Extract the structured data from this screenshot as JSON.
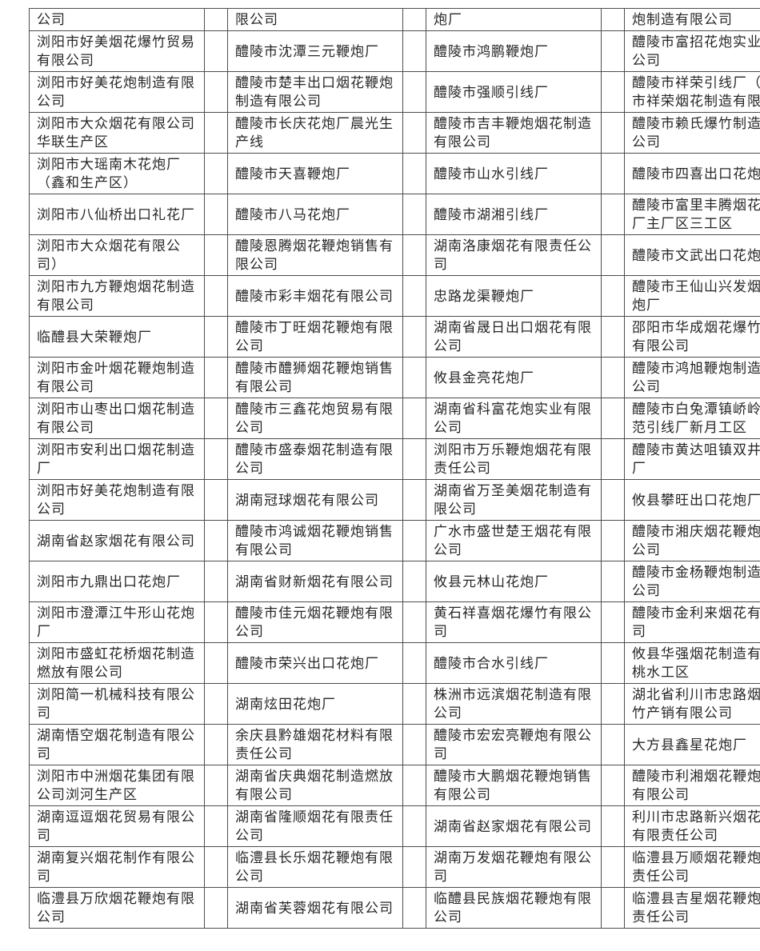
{
  "document": {
    "type": "scanned-table-page",
    "border_color": "#4d4d4d",
    "text_color": "#262626",
    "background_color": "#ffffff"
  },
  "table": {
    "column_count": 4,
    "spacer_columns": 3,
    "rows": [
      [
        "公司",
        "限公司",
        "炮厂",
        "炮制造有限公司"
      ],
      [
        "浏阳市好美烟花爆竹贸易有限公司",
        "醴陵市沈潭三元鞭炮厂",
        "醴陵市鸿鹏鞭炮厂",
        "醴陵市富招花炮实业有限公司"
      ],
      [
        "浏阳市好美花炮制造有限公司",
        "醴陵市楚丰出口烟花鞭炮制造有限公司",
        "醴陵市强顺引线厂",
        "醴陵市祥荣引线厂（醴陵市祥荣烟花制造有限公司"
      ],
      [
        "浏阳市大众烟花有限公司华联生产区",
        "醴陵市长庆花炮厂晨光生产线",
        "醴陵市吉丰鞭炮烟花制造有限公司",
        "醴陵市赖氏爆竹制造有限公司"
      ],
      [
        "浏阳市大瑶南木花炮厂（鑫和生产区）",
        "醴陵市天喜鞭炮厂",
        "醴陵市山水引线厂",
        "醴陵市四喜出口花炮厂"
      ],
      [
        "浏阳市八仙桥出口礼花厂",
        "醴陵市八马花炮厂",
        "醴陵市湖湘引线厂",
        "醴陵市富里丰腾烟花鞭炮厂主厂区三工区"
      ],
      [
        "浏阳市大众烟花有限公司）",
        "醴陵恩腾烟花鞭炮销售有限公司",
        "湖南洛康烟花有限责任公司",
        "醴陵市文武出口花炮厂"
      ],
      [
        "浏阳市九方鞭炮烟花制造有限公司",
        "醴陵市彩丰烟花有限公司",
        "忠路龙渠鞭炮厂",
        "醴陵市王仙山兴发烟花鞭炮厂"
      ],
      [
        "临醴县大荣鞭炮厂",
        "醴陵市丁旺烟花鞭炮有限公司",
        "湖南省晟日出口烟花有限公司",
        "邵阳市华成烟花爆竹批发有限公司"
      ],
      [
        "浏阳市金叶烟花鞭炮制造有限公司",
        "醴陵市醴狮烟花鞭炮销售有限公司",
        "攸县金亮花炮厂",
        "醴陵市鸿旭鞭炮制造有限公司"
      ],
      [
        "浏阳市山枣出口烟花制造有限公司",
        "醴陵市三鑫花炮贸易有限公司",
        "湖南省科富花炮实业有限公司",
        "醴陵市白兔潭镇峤岭村规范引线厂新月工区"
      ],
      [
        "浏阳市安利出口烟花制造厂",
        "醴陵市盛泰烟花制造有限公司",
        "浏阳市万乐鞭炮烟花有限责任公司",
        "醴陵市黄达咀镇双井花炮厂"
      ],
      [
        "浏阳市好美花炮制造有限公司",
        "湖南冠球烟花有限公司",
        "湖南省万圣美烟花制造有限公司",
        "攸县攀旺出口花炮厂"
      ],
      [
        "湖南省赵家烟花有限公司",
        "醴陵市鸿诚烟花鞭炮销售有限公司",
        "广水市盛世楚王烟花有限公司",
        "醴陵市湘庆烟花鞭炮有限公司"
      ],
      [
        "浏阳市九鼎出口花炮厂",
        "湖南省财新烟花有限公司",
        "攸县元林山花炮厂",
        "醴陵市金杨鞭炮制造有限公司"
      ],
      [
        "浏阳市澄潭江牛形山花炮厂",
        "醴陵市佳元烟花鞭炮有限公司",
        "黄石祥喜烟花爆竹有限公司",
        "醴陵市金利来烟花有限公司"
      ],
      [
        "浏阳市盛虹花桥烟花制造燃放有限公司",
        "醴陵市荣兴出口花炮厂",
        "醴陵市合水引线厂",
        "攸县华强烟花制造有限公桃水工区"
      ],
      [
        "浏阳简一机械科技有限公司",
        "湖南炫田花炮厂",
        "株洲市远滨烟花制造有限公司",
        "湖北省利川市忠路烟花爆竹产销有限公司"
      ],
      [
        "湖南悟空烟花制造有限公司",
        "余庆县黔雄烟花材料有限责任公司",
        "醴陵市宏宏亮鞭炮有限公司",
        "大方县鑫星花炮厂"
      ],
      [
        "浏阳市中洲烟花集团有限公司浏河生产区",
        "湖南省庆典烟花制造燃放有限公司",
        "醴陵市大鹏烟花鞭炮销售有限公司",
        "醴陵市利湘烟花鞭炮销售有限公司"
      ],
      [
        "湖南逗逗烟花贸易有限公司",
        "湖南省隆顺烟花有限责任公司",
        "湖南省赵家烟花有限公司",
        "利川市忠路新兴烟花爆竹有限责任公司"
      ],
      [
        "湖南复兴烟花制作有限公司",
        "临澧县长乐烟花鞭炮有限公司",
        "湖南万发烟花鞭炮有限公司",
        "临澧县万顺烟花鞭炮有限责任公司"
      ],
      [
        "临澧县万欣烟花鞭炮有限公司",
        "湖南省芙蓉烟花有限公司",
        "临醴县民族烟花鞭炮有限公司",
        "临澧县吉星烟花鞭炮有限责任公司"
      ]
    ]
  }
}
